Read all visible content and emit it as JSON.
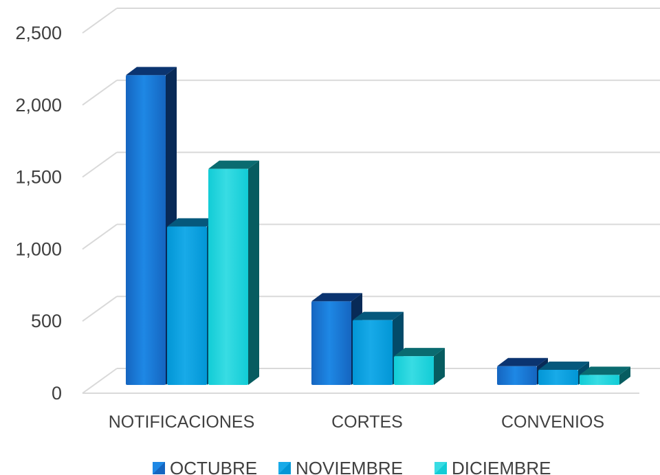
{
  "chart_data": {
    "type": "bar",
    "categories": [
      "NOTIFICACIONES",
      "CORTES",
      "CONVENIOS"
    ],
    "series": [
      {
        "name": "OCTUBRE",
        "values": [
          2150,
          580,
          130
        ]
      },
      {
        "name": "NOVIEMBRE",
        "values": [
          1100,
          450,
          105
        ]
      },
      {
        "name": "DICIEMBRE",
        "values": [
          1500,
          200,
          70
        ]
      }
    ],
    "yticks": [
      0,
      500,
      1000,
      1500,
      2000,
      2500
    ],
    "ytick_labels": [
      "0",
      "500",
      "1,000",
      "1,500",
      "2,000",
      "2,500"
    ],
    "ylim": [
      0,
      2500
    ],
    "grid": true,
    "legend_position": "bottom",
    "three_d": true,
    "colors": {
      "OCTUBRE": {
        "front": "#1565C0",
        "light": "#1E88E5",
        "side": "#082a57",
        "top": "#0b3470"
      },
      "NOVIEMBRE": {
        "front": "#0296D6",
        "light": "#18AAE8",
        "side": "#034a69",
        "top": "#05587c"
      },
      "DICIEMBRE": {
        "front": "#12CCD6",
        "light": "#38DCE3",
        "side": "#075c60",
        "top": "#0a6b70"
      },
      "grid": "#d9d9d9",
      "text": "#404040"
    }
  }
}
